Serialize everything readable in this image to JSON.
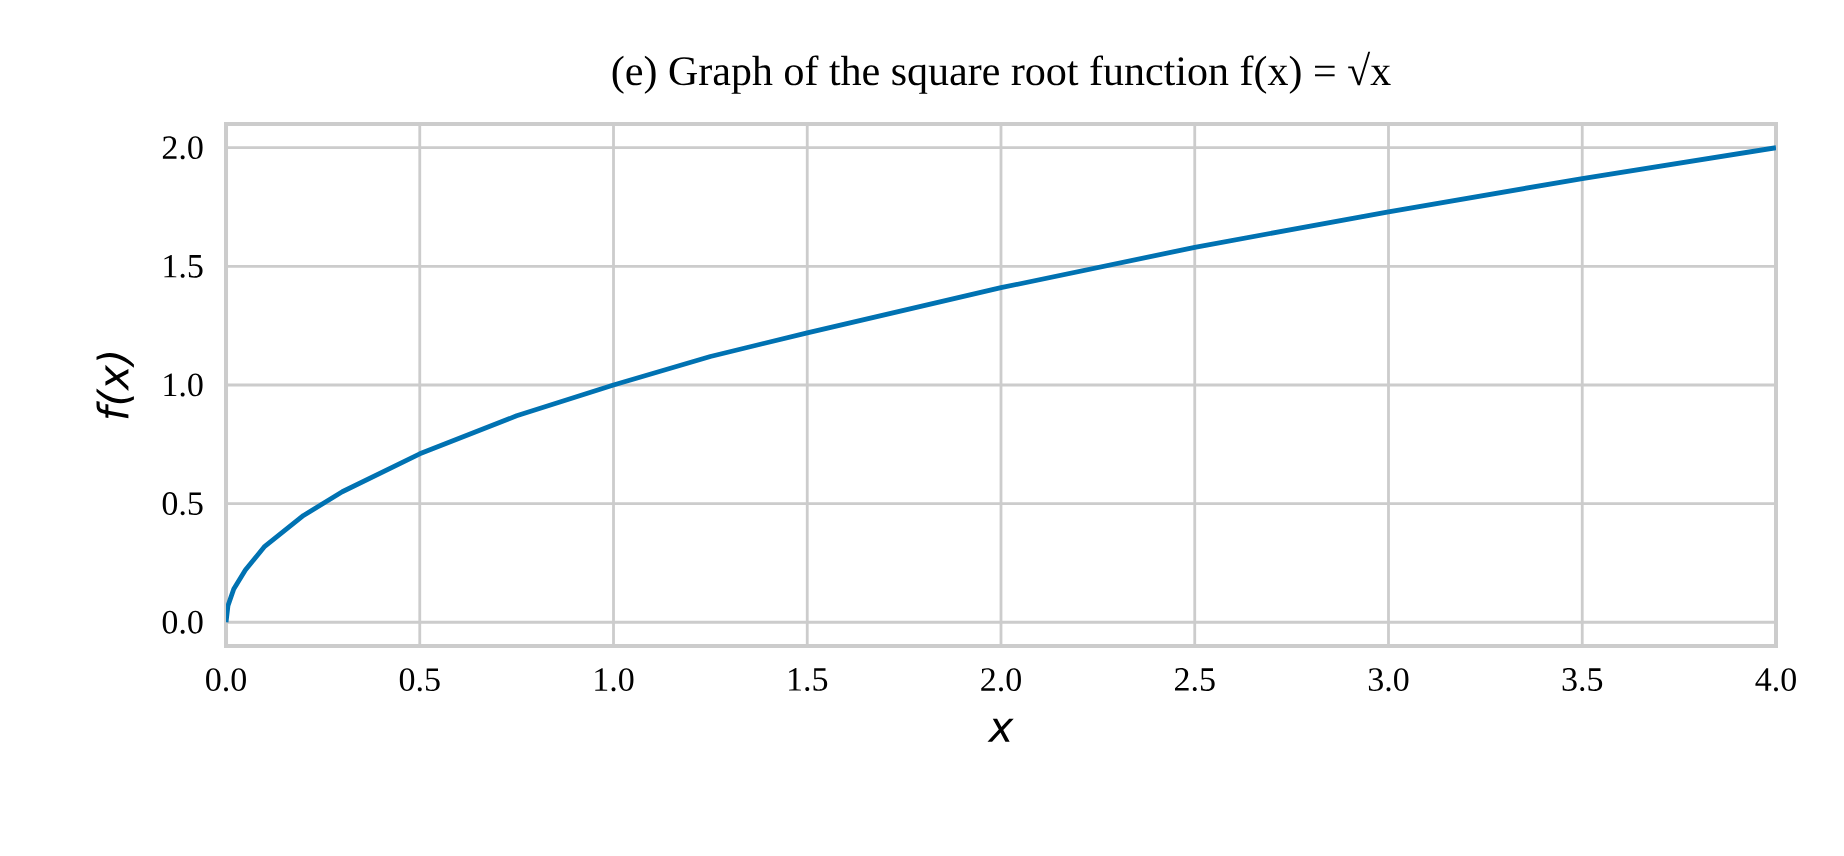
{
  "chart_data": {
    "type": "line",
    "title": "(e) Graph of the square root function f(x) = √x",
    "xlabel": "x",
    "ylabel": "f(x)",
    "x": [
      0,
      0.005,
      0.02,
      0.05,
      0.1,
      0.2,
      0.3,
      0.5,
      0.75,
      1,
      1.25,
      1.5,
      2,
      2.5,
      3,
      3.5,
      4
    ],
    "series": [
      {
        "color": "#0072b2",
        "values": [
          0,
          0.07,
          0.14,
          0.22,
          0.32,
          0.45,
          0.55,
          0.71,
          0.87,
          1.0,
          1.12,
          1.22,
          1.41,
          1.58,
          1.73,
          1.87,
          2.0
        ]
      }
    ],
    "xlim": [
      0,
      4
    ],
    "ylim": [
      -0.1,
      2.1
    ],
    "xticks": [
      {
        "value": 0,
        "label": "0.0"
      },
      0.5,
      {
        "value": 1,
        "label": "1.0"
      },
      1.5,
      {
        "value": 2,
        "label": "2.0"
      },
      2.5,
      {
        "value": 3,
        "label": "3.0"
      },
      3.5,
      {
        "value": 4,
        "label": "4.0"
      }
    ],
    "yticks": [
      {
        "value": 0,
        "label": "0.0"
      },
      0.5,
      {
        "value": 1,
        "label": "1.0"
      },
      1.5,
      {
        "value": 2,
        "label": "2.0"
      }
    ],
    "grid": true,
    "marker": "none",
    "line_style": "solid"
  }
}
